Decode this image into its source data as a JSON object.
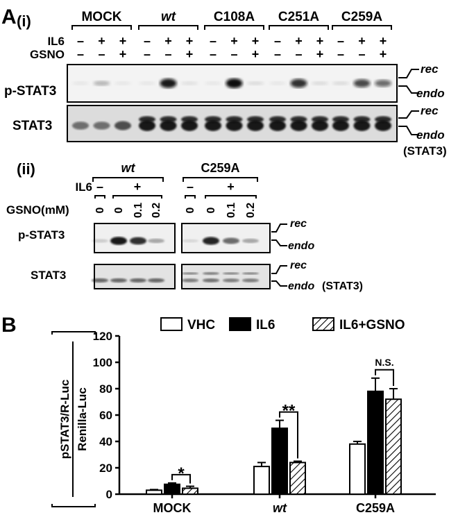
{
  "panel_a": {
    "label": "A",
    "sub_i": "(i)",
    "sub_ii": "(ii)",
    "groups": [
      {
        "name": "MOCK",
        "italic": false
      },
      {
        "name": "wt",
        "italic": true
      },
      {
        "name": "C108A",
        "italic": false
      },
      {
        "name": "C251A",
        "italic": false
      },
      {
        "name": "C259A",
        "italic": false
      }
    ],
    "il6_row_label": "IL6",
    "gsno_row_label": "GSNO",
    "il6_signs": [
      "–",
      "+",
      "+"
    ],
    "gsno_signs": [
      "–",
      "–",
      "+"
    ],
    "blot1_label": "p-STAT3",
    "blot2_label": "STAT3",
    "rec_label": "rec",
    "endo_label": "endo",
    "endo_note": "(STAT3)",
    "blot1_bands": [
      [
        0.05,
        0.25,
        0.05
      ],
      [
        0.05,
        0.95,
        0.08
      ],
      [
        0.05,
        1.0,
        0.1
      ],
      [
        0.05,
        0.85,
        0.1
      ],
      [
        0.1,
        0.75,
        0.6
      ]
    ],
    "blot2_bands": [
      [
        0.55,
        0.55,
        0.7
      ],
      [
        0.95,
        0.95,
        0.95
      ],
      [
        0.95,
        0.95,
        0.95
      ],
      [
        0.95,
        0.95,
        0.95
      ],
      [
        0.95,
        0.95,
        0.95
      ]
    ],
    "ii_groups": [
      {
        "name": "wt",
        "italic": true
      },
      {
        "name": "C259A",
        "italic": false
      }
    ],
    "ii_il6_minus": "–",
    "ii_il6_plus": "+",
    "ii_gsno_label": "GSNO(mM)",
    "ii_gsno_values": [
      "0",
      "0",
      "0.1",
      "0.2"
    ],
    "ii_blot1_label": "p-STAT3",
    "ii_blot2_label": "STAT3",
    "ii_blot1_bands": [
      [
        0.15,
        0.95,
        0.85,
        0.3
      ],
      [
        0.1,
        0.9,
        0.6,
        0.3
      ]
    ],
    "ii_blot2_bands": [
      [
        0.6,
        0.6,
        0.6,
        0.6
      ],
      [
        0.5,
        0.55,
        0.5,
        0.5
      ]
    ]
  },
  "chart_data": {
    "type": "bar",
    "panel_label": "B",
    "categories": [
      "MOCK",
      "wt",
      "C259A"
    ],
    "category_italic": [
      false,
      true,
      false
    ],
    "ylabel_top": "pSTAT3/R-Luc",
    "ylabel_bottom": "Renilla-Luc",
    "ylim": [
      0,
      120
    ],
    "yticks": [
      "0",
      "20",
      "40",
      "60",
      "80",
      "100",
      "120"
    ],
    "series": [
      {
        "name": "VHC",
        "values": [
          3,
          21,
          38
        ],
        "errors": [
          0.5,
          3,
          2
        ],
        "fill": "white"
      },
      {
        "name": "IL6",
        "values": [
          7.5,
          50,
          78
        ],
        "errors": [
          1,
          6,
          10
        ],
        "fill": "black"
      },
      {
        "name": "IL6+GSNO",
        "values": [
          4.5,
          24,
          72
        ],
        "errors": [
          1.5,
          1,
          8
        ],
        "fill": "hatch"
      }
    ],
    "significance": [
      "*",
      "**",
      "N.S."
    ],
    "legend_position": "top",
    "grid": false
  },
  "colors": {
    "ink": "#000000",
    "blot_bg": "#f2f2f2",
    "band": "#111111"
  }
}
